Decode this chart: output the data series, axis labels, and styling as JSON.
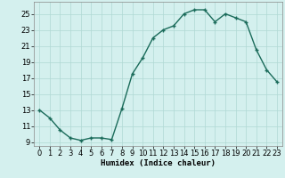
{
  "x": [
    0,
    1,
    2,
    3,
    4,
    5,
    6,
    7,
    8,
    9,
    10,
    11,
    12,
    13,
    14,
    15,
    16,
    17,
    18,
    19,
    20,
    21,
    22,
    23
  ],
  "y": [
    13,
    12,
    10.5,
    9.5,
    9.2,
    9.5,
    9.5,
    9.3,
    13.2,
    17.5,
    19.5,
    22.0,
    23.0,
    23.5,
    25.0,
    25.5,
    25.5,
    24.0,
    25.0,
    24.5,
    24.0,
    20.5,
    18.0,
    16.5
  ],
  "line_color": "#1a6b5a",
  "marker": "+",
  "marker_size": 3.5,
  "linewidth": 1.0,
  "markeredgewidth": 1.0,
  "background_color": "#d4f0ee",
  "grid_color": "#b0d8d4",
  "xlabel": "Humidex (Indice chaleur)",
  "ylabel": "",
  "xlim": [
    -0.5,
    23.5
  ],
  "ylim": [
    8.5,
    26.5
  ],
  "yticks": [
    9,
    11,
    13,
    15,
    17,
    19,
    21,
    23,
    25
  ],
  "xticks": [
    0,
    1,
    2,
    3,
    4,
    5,
    6,
    7,
    8,
    9,
    10,
    11,
    12,
    13,
    14,
    15,
    16,
    17,
    18,
    19,
    20,
    21,
    22,
    23
  ],
  "xlabel_fontsize": 6.5,
  "tick_fontsize": 6.0
}
